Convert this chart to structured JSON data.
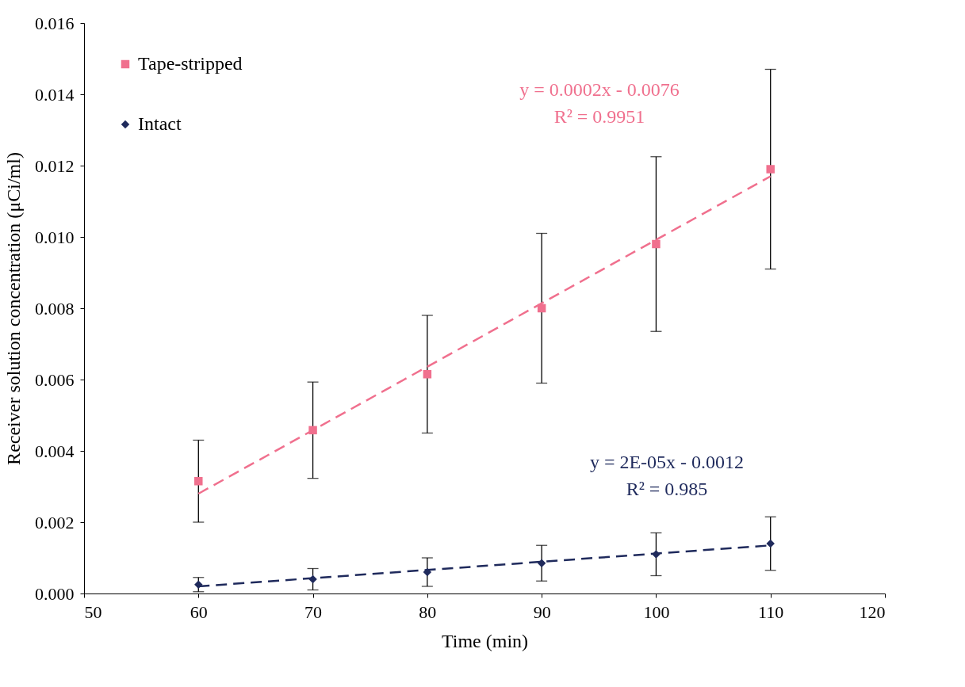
{
  "chart_data": {
    "type": "scatter",
    "xlabel": "Time (min)",
    "ylabel": "Receiver solution concentration (μCi/ml)",
    "xlim": [
      50,
      120
    ],
    "xticks": [
      50,
      60,
      70,
      80,
      90,
      100,
      110,
      120
    ],
    "ylim": [
      0,
      0.016
    ],
    "yticks": [
      {
        "value": 0,
        "label": "0.000"
      },
      {
        "value": 0.002,
        "label": "0.002"
      },
      {
        "value": 0.004,
        "label": "0.004"
      },
      {
        "value": 0.006,
        "label": "0.006"
      },
      {
        "value": 0.008,
        "label": "0.008"
      },
      {
        "value": 0.01,
        "label": "0.010"
      },
      {
        "value": 0.012,
        "label": "0.012"
      },
      {
        "value": 0.014,
        "label": "0.014"
      },
      {
        "value": 0.016,
        "label": "0.016"
      }
    ],
    "grid": false,
    "legend": "top left",
    "series": [
      {
        "name": "Tape-stripped",
        "marker": "square",
        "color": "#f0708e",
        "x": [
          60,
          70,
          80,
          90,
          100,
          110
        ],
        "values": [
          0.00315,
          0.00458,
          0.00615,
          0.008,
          0.0098,
          0.0119
        ],
        "errors": [
          0.00115,
          0.00135,
          0.00165,
          0.0021,
          0.00245,
          0.0028
        ]
      },
      {
        "name": "Intact",
        "marker": "diamond",
        "color": "#1f2a5c",
        "x": [
          60,
          70,
          80,
          90,
          100,
          110
        ],
        "values": [
          0.00025,
          0.0004,
          0.0006,
          0.00085,
          0.0011,
          0.0014
        ],
        "errors": [
          0.0002,
          0.0003,
          0.0004,
          0.0005,
          0.0006,
          0.00075
        ]
      },
      {
        "type": "line",
        "line_style": "dashed",
        "color": "#f0708e",
        "x": [
          60,
          110
        ],
        "values": [
          0.0028,
          0.0117
        ]
      },
      {
        "type": "line",
        "line_style": "dashed",
        "color": "#1f2a5c",
        "x": [
          60,
          110
        ],
        "values": [
          0.0002,
          0.00135
        ]
      }
    ],
    "annotations": [
      "y = 0.0002x - 0.0076\nR² = 0.9951",
      "y = 2E-05x - 0.0012\nR² = 0.985"
    ]
  }
}
